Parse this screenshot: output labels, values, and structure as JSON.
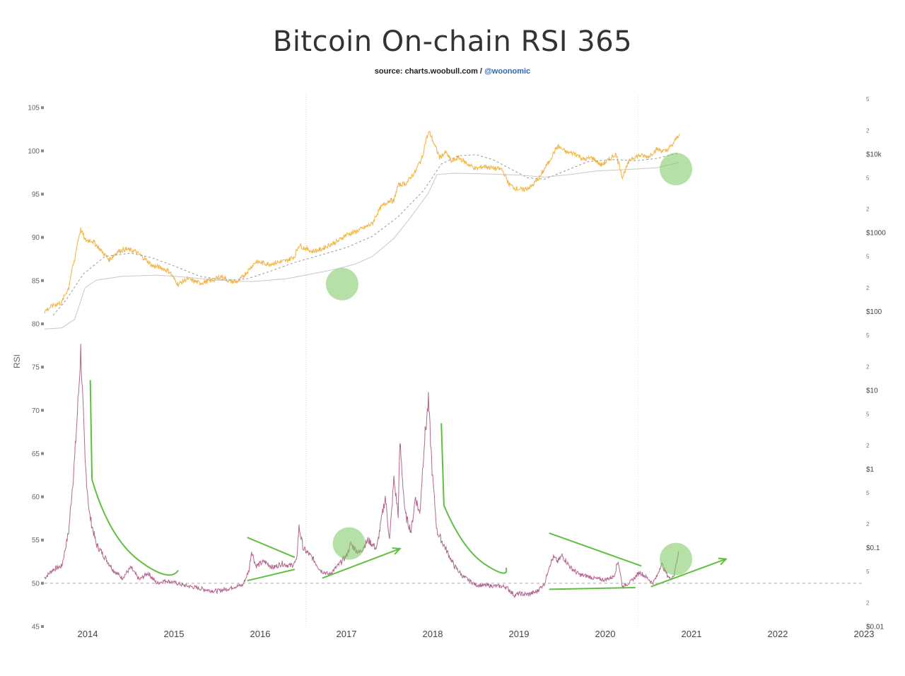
{
  "header": {
    "title": "Bitcoin On-chain RSI 365",
    "source_prefix": "source: charts.woobull.com / ",
    "source_handle": "@woonomic"
  },
  "chart_data": {
    "type": "line",
    "title": "Bitcoin On-chain RSI 365",
    "ylabel": "RSI",
    "x_ticks": [
      "2014",
      "2015",
      "2016",
      "2017",
      "2018",
      "2019",
      "2020",
      "2021",
      "2022",
      "2023"
    ],
    "x_range": [
      2013.5,
      2023.0
    ],
    "y_left": {
      "ticks": [
        45,
        50,
        55,
        60,
        65,
        70,
        75,
        80,
        85,
        90,
        95,
        100,
        105
      ],
      "range": [
        45,
        106
      ]
    },
    "y_right": {
      "scale": "log",
      "range": [
        0.01,
        50000
      ],
      "major_labels": [
        {
          "value": 0.1,
          "label": "$0.1"
        },
        {
          "value": 1,
          "label": "$1"
        },
        {
          "value": 10,
          "label": "$10"
        },
        {
          "value": 100,
          "label": "$100"
        },
        {
          "value": 1000,
          "label": "$1000"
        },
        {
          "value": 10000,
          "label": "$10k"
        }
      ],
      "minor_labels": [
        {
          "value": 0.02,
          "label": "2"
        },
        {
          "value": 0.05,
          "label": "5"
        },
        {
          "value": 0.2,
          "label": "2"
        },
        {
          "value": 0.5,
          "label": "5"
        },
        {
          "value": 2,
          "label": "2"
        },
        {
          "value": 5,
          "label": "5"
        },
        {
          "value": 20,
          "label": "2"
        },
        {
          "value": 50,
          "label": "5"
        },
        {
          "value": 200,
          "label": "2"
        },
        {
          "value": 500,
          "label": "5"
        },
        {
          "value": 2000,
          "label": "2"
        },
        {
          "value": 5000,
          "label": "5"
        },
        {
          "value": 20000,
          "label": "2"
        },
        {
          "value": 50000,
          "label": "5"
        }
      ],
      "bottom_label": {
        "value": 0.01,
        "label": "$0.01"
      }
    },
    "reference_line": {
      "y": 50,
      "style": "dashed"
    },
    "vertical_lines": [
      2016.53,
      2020.38
    ],
    "series": [
      {
        "role": "rsi",
        "axis": "left",
        "color": "#b3668f",
        "points": [
          [
            2013.5,
            50.6
          ],
          [
            2013.6,
            51.6
          ],
          [
            2013.7,
            52.0
          ],
          [
            2013.78,
            56.0
          ],
          [
            2013.85,
            64.5
          ],
          [
            2013.9,
            73.0
          ],
          [
            2013.92,
            77.0
          ],
          [
            2013.97,
            64.0
          ],
          [
            2014.02,
            58.0
          ],
          [
            2014.1,
            54.5
          ],
          [
            2014.2,
            53.0
          ],
          [
            2014.3,
            51.5
          ],
          [
            2014.4,
            50.6
          ],
          [
            2014.5,
            51.8
          ],
          [
            2014.6,
            50.4
          ],
          [
            2014.7,
            51.2
          ],
          [
            2014.8,
            50.0
          ],
          [
            2014.9,
            50.3
          ],
          [
            2015.0,
            50.1
          ],
          [
            2015.1,
            49.8
          ],
          [
            2015.2,
            49.6
          ],
          [
            2015.3,
            49.4
          ],
          [
            2015.4,
            49.2
          ],
          [
            2015.5,
            49.1
          ],
          [
            2015.6,
            49.3
          ],
          [
            2015.7,
            49.6
          ],
          [
            2015.8,
            49.8
          ],
          [
            2015.87,
            51.5
          ],
          [
            2015.9,
            53.8
          ],
          [
            2015.95,
            52.0
          ],
          [
            2016.05,
            52.5
          ],
          [
            2016.15,
            51.8
          ],
          [
            2016.25,
            52.3
          ],
          [
            2016.35,
            52.0
          ],
          [
            2016.42,
            52.5
          ],
          [
            2016.45,
            56.5
          ],
          [
            2016.5,
            54.0
          ],
          [
            2016.6,
            53.0
          ],
          [
            2016.7,
            51.5
          ],
          [
            2016.8,
            51.0
          ],
          [
            2016.9,
            52.0
          ],
          [
            2017.0,
            53.2
          ],
          [
            2017.05,
            54.5
          ],
          [
            2017.15,
            53.5
          ],
          [
            2017.25,
            55.0
          ],
          [
            2017.35,
            54.0
          ],
          [
            2017.4,
            57.0
          ],
          [
            2017.45,
            60.0
          ],
          [
            2017.5,
            55.0
          ],
          [
            2017.55,
            62.0
          ],
          [
            2017.6,
            58.0
          ],
          [
            2017.62,
            66.3
          ],
          [
            2017.68,
            58.0
          ],
          [
            2017.75,
            56.0
          ],
          [
            2017.8,
            60.0
          ],
          [
            2017.85,
            58.0
          ],
          [
            2017.9,
            66.0
          ],
          [
            2017.95,
            71.0
          ],
          [
            2018.0,
            62.0
          ],
          [
            2018.05,
            56.0
          ],
          [
            2018.15,
            54.0
          ],
          [
            2018.25,
            52.0
          ],
          [
            2018.35,
            50.8
          ],
          [
            2018.5,
            49.8
          ],
          [
            2018.7,
            49.7
          ],
          [
            2018.85,
            49.6
          ],
          [
            2018.95,
            48.6
          ],
          [
            2019.0,
            48.8
          ],
          [
            2019.1,
            48.7
          ],
          [
            2019.2,
            49.0
          ],
          [
            2019.3,
            50.0
          ],
          [
            2019.35,
            52.0
          ],
          [
            2019.4,
            53.0
          ],
          [
            2019.45,
            52.5
          ],
          [
            2019.5,
            53.2
          ],
          [
            2019.6,
            51.8
          ],
          [
            2019.7,
            51.0
          ],
          [
            2019.8,
            50.8
          ],
          [
            2019.9,
            50.5
          ],
          [
            2020.0,
            50.4
          ],
          [
            2020.1,
            50.8
          ],
          [
            2020.15,
            52.6
          ],
          [
            2020.2,
            49.6
          ],
          [
            2020.3,
            50.2
          ],
          [
            2020.4,
            51.3
          ],
          [
            2020.5,
            50.5
          ],
          [
            2020.55,
            50.0
          ],
          [
            2020.6,
            50.8
          ],
          [
            2020.65,
            52.3
          ],
          [
            2020.7,
            51.3
          ],
          [
            2020.75,
            50.5
          ],
          [
            2020.8,
            51.0
          ],
          [
            2020.85,
            53.7
          ]
        ]
      },
      {
        "role": "price",
        "axis": "right",
        "color": "#f2b84b",
        "points": [
          [
            2013.5,
            100
          ],
          [
            2013.6,
            120
          ],
          [
            2013.7,
            130
          ],
          [
            2013.78,
            200
          ],
          [
            2013.85,
            450
          ],
          [
            2013.92,
            1100
          ],
          [
            2013.97,
            800
          ],
          [
            2014.05,
            800
          ],
          [
            2014.15,
            600
          ],
          [
            2014.25,
            450
          ],
          [
            2014.35,
            580
          ],
          [
            2014.45,
            620
          ],
          [
            2014.55,
            580
          ],
          [
            2014.65,
            480
          ],
          [
            2014.75,
            380
          ],
          [
            2014.85,
            360
          ],
          [
            2014.95,
            320
          ],
          [
            2015.0,
            260
          ],
          [
            2015.05,
            220
          ],
          [
            2015.15,
            260
          ],
          [
            2015.3,
            230
          ],
          [
            2015.45,
            250
          ],
          [
            2015.55,
            280
          ],
          [
            2015.65,
            240
          ],
          [
            2015.75,
            240
          ],
          [
            2015.85,
            320
          ],
          [
            2015.95,
            430
          ],
          [
            2016.1,
            400
          ],
          [
            2016.2,
            420
          ],
          [
            2016.3,
            440
          ],
          [
            2016.4,
            500
          ],
          [
            2016.45,
            700
          ],
          [
            2016.5,
            650
          ],
          [
            2016.6,
            580
          ],
          [
            2016.7,
            610
          ],
          [
            2016.8,
            700
          ],
          [
            2016.9,
            780
          ],
          [
            2017.0,
            950
          ],
          [
            2017.08,
            1000
          ],
          [
            2017.2,
            1150
          ],
          [
            2017.3,
            1300
          ],
          [
            2017.4,
            2100
          ],
          [
            2017.5,
            2600
          ],
          [
            2017.55,
            2500
          ],
          [
            2017.6,
            4000
          ],
          [
            2017.7,
            4300
          ],
          [
            2017.8,
            6000
          ],
          [
            2017.88,
            9000
          ],
          [
            2017.93,
            16000
          ],
          [
            2017.96,
            19000
          ],
          [
            2018.02,
            13000
          ],
          [
            2018.08,
            9000
          ],
          [
            2018.15,
            10500
          ],
          [
            2018.22,
            8000
          ],
          [
            2018.3,
            9000
          ],
          [
            2018.4,
            7500
          ],
          [
            2018.5,
            6500
          ],
          [
            2018.6,
            7000
          ],
          [
            2018.7,
            6600
          ],
          [
            2018.8,
            6400
          ],
          [
            2018.88,
            4200
          ],
          [
            2018.95,
            3700
          ],
          [
            2019.05,
            3500
          ],
          [
            2019.15,
            3900
          ],
          [
            2019.25,
            5200
          ],
          [
            2019.35,
            8000
          ],
          [
            2019.45,
            12500
          ],
          [
            2019.55,
            10500
          ],
          [
            2019.65,
            10200
          ],
          [
            2019.75,
            8500
          ],
          [
            2019.85,
            9000
          ],
          [
            2019.95,
            7200
          ],
          [
            2020.05,
            8500
          ],
          [
            2020.12,
            10000
          ],
          [
            2020.2,
            5000
          ],
          [
            2020.3,
            8800
          ],
          [
            2020.4,
            9600
          ],
          [
            2020.5,
            9200
          ],
          [
            2020.6,
            11500
          ],
          [
            2020.7,
            10800
          ],
          [
            2020.78,
            13000
          ],
          [
            2020.86,
            18000
          ]
        ]
      },
      {
        "role": "price-average",
        "axis": "right",
        "color": "#999999",
        "dash": true,
        "points": [
          [
            2013.6,
            90
          ],
          [
            2013.75,
            140
          ],
          [
            2013.95,
            300
          ],
          [
            2014.2,
            500
          ],
          [
            2014.5,
            550
          ],
          [
            2014.75,
            480
          ],
          [
            2015.0,
            380
          ],
          [
            2015.3,
            280
          ],
          [
            2015.6,
            250
          ],
          [
            2015.85,
            260
          ],
          [
            2016.1,
            320
          ],
          [
            2016.4,
            420
          ],
          [
            2016.7,
            520
          ],
          [
            2017.0,
            650
          ],
          [
            2017.3,
            900
          ],
          [
            2017.6,
            1600
          ],
          [
            2017.9,
            3500
          ],
          [
            2018.1,
            7500
          ],
          [
            2018.3,
            9500
          ],
          [
            2018.5,
            9800
          ],
          [
            2018.7,
            8500
          ],
          [
            2018.9,
            6500
          ],
          [
            2019.1,
            5000
          ],
          [
            2019.3,
            4800
          ],
          [
            2019.55,
            6200
          ],
          [
            2019.8,
            8000
          ],
          [
            2020.1,
            8500
          ],
          [
            2020.35,
            8200
          ],
          [
            2020.6,
            8800
          ],
          [
            2020.85,
            10300
          ]
        ]
      },
      {
        "role": "price-realized",
        "axis": "right",
        "color": "#c8c8c8",
        "dash": false,
        "points": [
          [
            2013.5,
            60
          ],
          [
            2013.7,
            62
          ],
          [
            2013.85,
            80
          ],
          [
            2013.97,
            200
          ],
          [
            2014.1,
            250
          ],
          [
            2014.4,
            280
          ],
          [
            2014.8,
            290
          ],
          [
            2015.1,
            275
          ],
          [
            2015.5,
            250
          ],
          [
            2015.9,
            240
          ],
          [
            2016.3,
            260
          ],
          [
            2016.6,
            300
          ],
          [
            2016.9,
            350
          ],
          [
            2017.1,
            400
          ],
          [
            2017.3,
            500
          ],
          [
            2017.55,
            850
          ],
          [
            2017.75,
            1600
          ],
          [
            2017.95,
            3200
          ],
          [
            2018.05,
            5500
          ],
          [
            2018.25,
            5700
          ],
          [
            2018.6,
            5600
          ],
          [
            2019.0,
            5400
          ],
          [
            2019.3,
            5100
          ],
          [
            2019.6,
            5500
          ],
          [
            2019.9,
            6100
          ],
          [
            2020.3,
            6400
          ],
          [
            2020.6,
            6700
          ],
          [
            2020.85,
            7800
          ]
        ]
      }
    ],
    "annotations": {
      "circles": [
        [
          2016.95,
          84.6
        ],
        [
          2017.03,
          54.6
        ],
        [
          2020.82,
          97.9
        ],
        [
          2020.82,
          52.8
        ]
      ],
      "curves": [
        [
          [
            2014.03,
            73.5
          ],
          [
            2014.05,
            62.0
          ],
          [
            2014.25,
            55.2
          ],
          [
            2014.6,
            52.6
          ],
          [
            2015.05,
            51.5
          ]
        ],
        [
          [
            2018.1,
            68.5
          ],
          [
            2018.13,
            59.0
          ],
          [
            2018.35,
            53.8
          ],
          [
            2018.62,
            52.1
          ],
          [
            2018.85,
            51.8
          ]
        ]
      ],
      "lines": [
        [
          [
            2015.85,
            55.3
          ],
          [
            2016.4,
            53.0
          ]
        ],
        [
          [
            2015.85,
            50.3
          ],
          [
            2016.4,
            51.6
          ]
        ],
        [
          [
            2019.35,
            55.8
          ],
          [
            2020.42,
            52.0
          ]
        ],
        [
          [
            2019.35,
            49.3
          ],
          [
            2020.35,
            49.5
          ]
        ]
      ],
      "arrows": [
        [
          [
            2016.72,
            50.6
          ],
          [
            2017.62,
            54.0
          ]
        ],
        [
          [
            2020.53,
            49.6
          ],
          [
            2021.4,
            52.8
          ]
        ]
      ]
    }
  }
}
